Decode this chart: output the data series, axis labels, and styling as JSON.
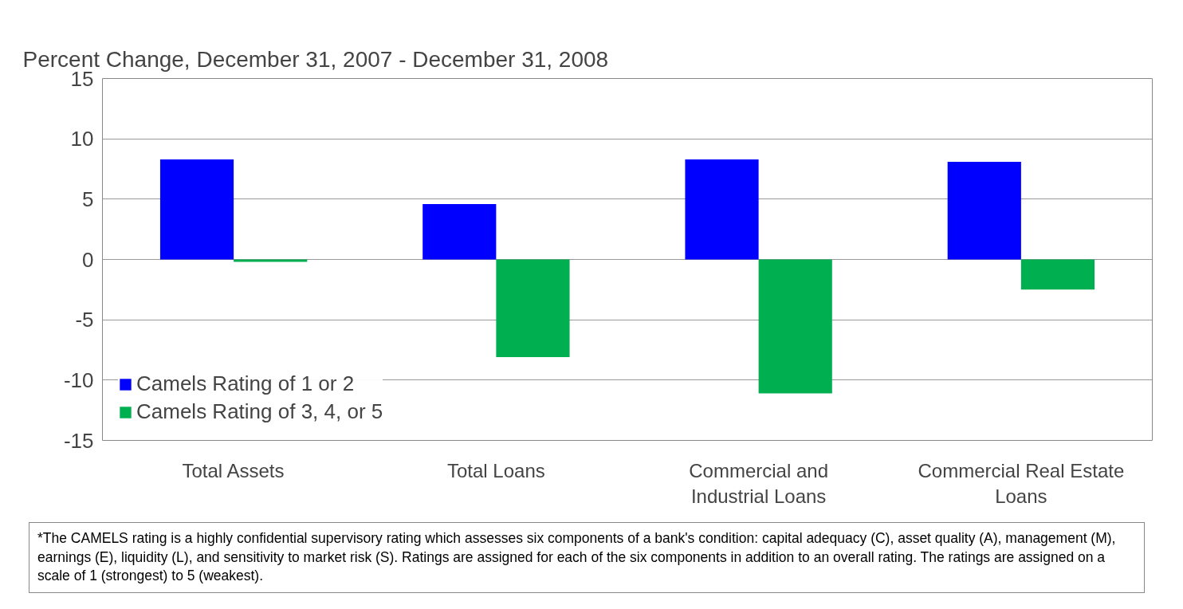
{
  "chart_data": {
    "type": "bar",
    "title": "Percent Change, December 31, 2007 - December 31, 2008",
    "categories": [
      "Total Assets",
      "Total Loans",
      "Commercial and Industrial Loans",
      "Commercial Real Estate Loans"
    ],
    "series": [
      {
        "name": "Camels Rating of 1 or 2",
        "color": "#0000ff",
        "values": [
          8.3,
          4.6,
          8.3,
          8.1
        ]
      },
      {
        "name": "Camels Rating of 3, 4, or 5",
        "color": "#00b050",
        "values": [
          -0.2,
          -8.1,
          -11.1,
          -2.5
        ]
      }
    ],
    "ylim": [
      -15,
      15
    ],
    "yticks": [
      -15,
      -10,
      -5,
      0,
      5,
      10,
      15
    ],
    "grid": "y",
    "legend": "bottom left",
    "annotations": [
      "*The CAMELS rating is a highly confidential supervisory rating which assesses six components of a bank's condition:  capital adequacy (C), asset quality (A), management (M), earnings (E), liquidity (L), and sensitivity to market risk (S).  Ratings are assigned for each of the six components in addition to an overall rating.  The ratings are assigned on a scale of 1 (strongest) to 5 (weakest)."
    ]
  }
}
